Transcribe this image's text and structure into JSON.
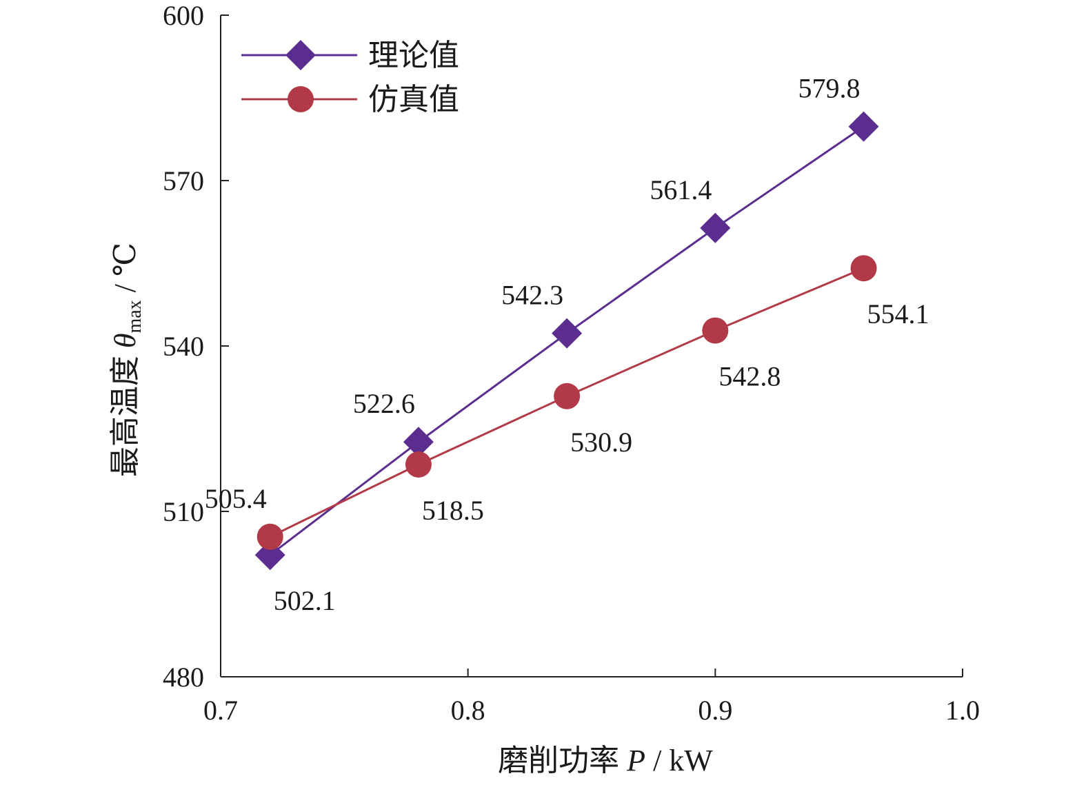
{
  "chart_data": {
    "type": "line",
    "x": [
      0.72,
      0.78,
      0.84,
      0.9,
      0.96
    ],
    "xlim": [
      0.7,
      1.0
    ],
    "ylim": [
      480,
      600
    ],
    "xticks": [
      "0.7",
      "0.8",
      "0.9",
      "1.0"
    ],
    "yticks": [
      "480",
      "510",
      "540",
      "570",
      "600"
    ],
    "xlabel": {
      "prefix": "磨削功率 ",
      "symbol": "P",
      "unit": " / kW"
    },
    "ylabel": {
      "prefix": "最高温度 ",
      "symbol": "θ",
      "subscript": "max",
      "unit": " / ℃"
    },
    "grid": false,
    "legend_position": "top-left",
    "series": [
      {
        "name": "理论值",
        "marker": "diamond",
        "color": "#5b2d8e",
        "values": [
          502.1,
          522.6,
          542.3,
          561.4,
          579.8
        ],
        "labels": [
          "502.1",
          "522.6",
          "542.3",
          "561.4",
          "579.8"
        ],
        "label_side": [
          "below-right",
          "above-left",
          "above-left",
          "above-left",
          "above-left"
        ]
      },
      {
        "name": "仿真值",
        "marker": "circle",
        "color": "#b23a48",
        "values": [
          505.4,
          518.5,
          530.9,
          542.8,
          554.1
        ],
        "labels": [
          "505.4",
          "518.5",
          "530.9",
          "542.8",
          "554.1"
        ],
        "label_side": [
          "above-left",
          "below-right",
          "below-right",
          "below-right",
          "below-right"
        ]
      }
    ]
  }
}
